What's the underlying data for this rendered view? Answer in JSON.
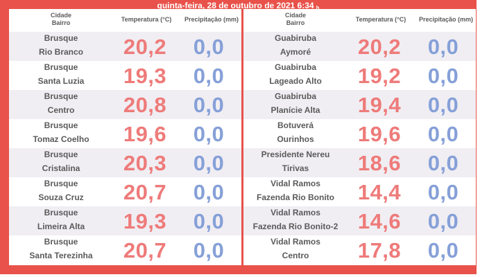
{
  "header": {
    "datetime": "quinta-feira, 28 de outubro de 2021   6:34",
    "hour_suffix": "h"
  },
  "columns": {
    "city_line1": "Cidade",
    "city_line2": "Bairro",
    "temperature": "Temperatura (°C)",
    "precipitation": "Precipitação (mm)"
  },
  "left_panel": [
    {
      "city": "Brusque",
      "bairro": "Rio Branco",
      "temp": "20,2",
      "prec": "0,0"
    },
    {
      "city": "Brusque",
      "bairro": "Santa Luzia",
      "temp": "19,3",
      "prec": "0,0"
    },
    {
      "city": "Brusque",
      "bairro": "Centro",
      "temp": "20,8",
      "prec": "0,0"
    },
    {
      "city": "Brusque",
      "bairro": "Tomaz Coelho",
      "temp": "19,6",
      "prec": "0,0"
    },
    {
      "city": "Brusque",
      "bairro": "Cristalina",
      "temp": "20,3",
      "prec": "0,0"
    },
    {
      "city": "Brusque",
      "bairro": "Souza Cruz",
      "temp": "20,7",
      "prec": "0,0"
    },
    {
      "city": "Brusque",
      "bairro": "Limeira Alta",
      "temp": "19,3",
      "prec": "0,0"
    },
    {
      "city": "Brusque",
      "bairro": "Santa Terezinha",
      "temp": "20,7",
      "prec": "0,0"
    }
  ],
  "right_panel": [
    {
      "city": "Guabiruba",
      "bairro": "Aymoré",
      "temp": "20,2",
      "prec": "0,0"
    },
    {
      "city": "Guabiruba",
      "bairro": "Lageado Alto",
      "temp": "19,2",
      "prec": "0,0"
    },
    {
      "city": "Guabiruba",
      "bairro": "Planície Alta",
      "temp": "19,4",
      "prec": "0,0"
    },
    {
      "city": "Botuverá",
      "bairro": "Ourinhos",
      "temp": "19,6",
      "prec": "0,0"
    },
    {
      "city": "Presidente Nereu",
      "bairro": "Tirivas",
      "temp": "18,6",
      "prec": "0,0"
    },
    {
      "city": "Vidal Ramos",
      "bairro": "Fazenda Rio Bonito",
      "temp": "14,4",
      "prec": "0,0"
    },
    {
      "city": "Vidal Ramos",
      "bairro": "Fazenda Rio Bonito-2",
      "temp": "14,6",
      "prec": "0,0"
    },
    {
      "city": "Vidal Ramos",
      "bairro": "Centro",
      "temp": "17,8",
      "prec": "0,0"
    }
  ],
  "colors": {
    "frame": "#e8524a",
    "temperature": "#ee7b7a",
    "precipitation": "#86a0d8",
    "label": "#5a5a5a",
    "row_alt": "#f0eef3"
  }
}
